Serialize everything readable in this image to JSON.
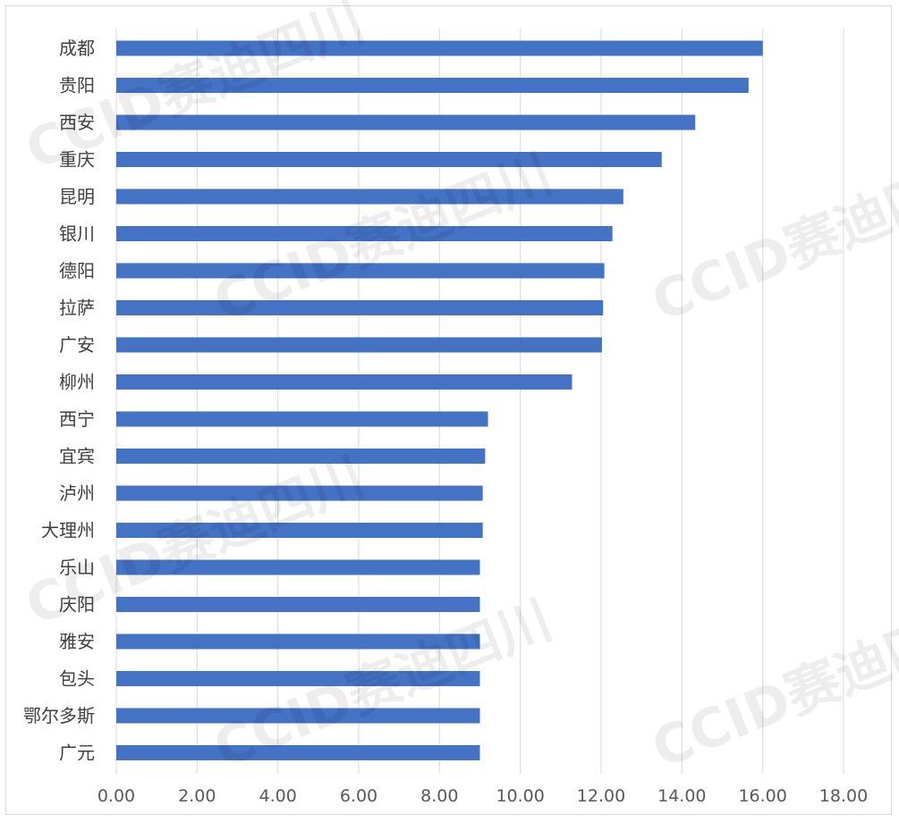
{
  "chart_data": {
    "type": "bar",
    "orientation": "horizontal",
    "categories": [
      "成都",
      "贵阳",
      "西安",
      "重庆",
      "昆明",
      "银川",
      "德阳",
      "拉萨",
      "广安",
      "柳州",
      "西宁",
      "宜宾",
      "泸州",
      "大理州",
      "乐山",
      "庆阳",
      "雅安",
      "包头",
      "鄂尔多斯",
      "广元"
    ],
    "values": [
      16.0,
      15.65,
      14.33,
      13.5,
      12.55,
      12.28,
      12.08,
      12.05,
      12.02,
      11.28,
      9.2,
      9.13,
      9.07,
      9.07,
      9.0,
      9.0,
      9.0,
      9.0,
      9.0,
      9.0
    ],
    "xlim": [
      0,
      18
    ],
    "x_ticks": [
      "0.00",
      "2.00",
      "4.00",
      "6.00",
      "8.00",
      "10.00",
      "12.00",
      "14.00",
      "16.00",
      "18.00"
    ],
    "grid": "vertical",
    "bar_color": "#4472C4",
    "title": "",
    "xlabel": "",
    "ylabel": ""
  },
  "watermark": {
    "text": "CCID赛迪四川"
  }
}
